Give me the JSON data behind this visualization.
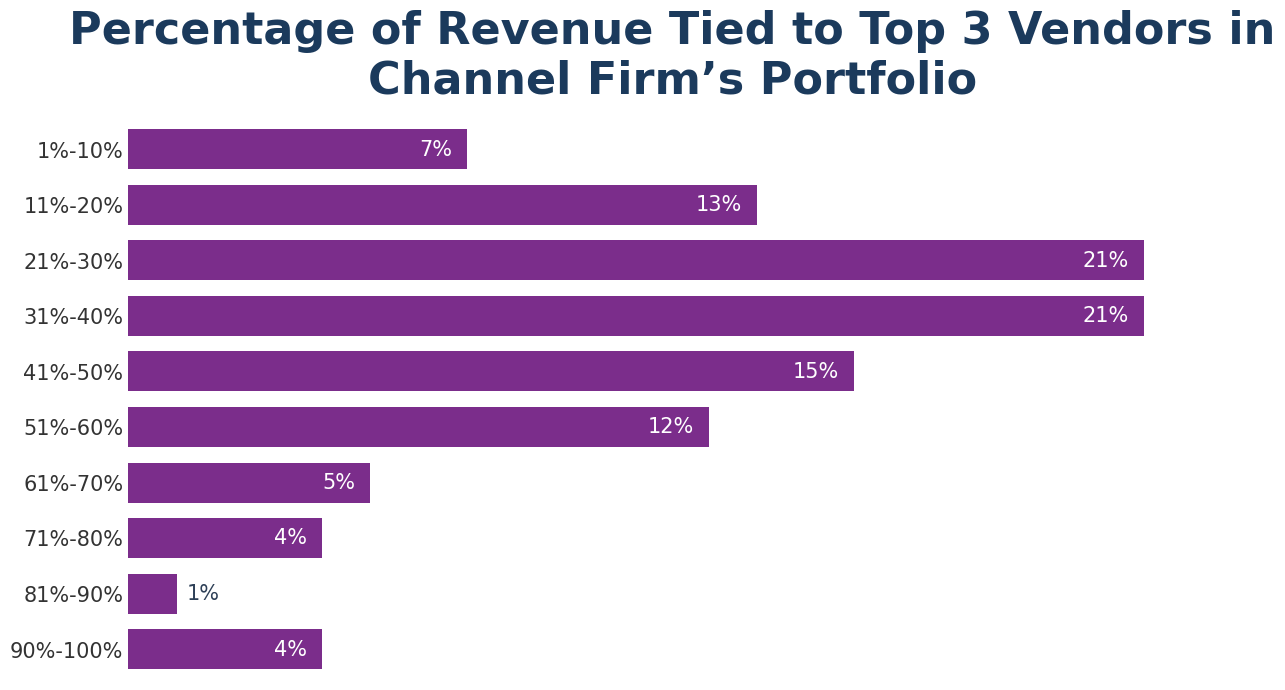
{
  "title": "Percentage of Revenue Tied to Top 3 Vendors in\nChannel Firm’s Portfolio",
  "categories": [
    "1%-10%",
    "11%-20%",
    "21%-30%",
    "31%-40%",
    "41%-50%",
    "51%-60%",
    "61%-70%",
    "71%-80%",
    "81%-90%",
    "90%-100%"
  ],
  "values": [
    7,
    13,
    21,
    21,
    15,
    12,
    5,
    4,
    1,
    4
  ],
  "bar_color": "#7B2D8B",
  "label_color_inside": "#ffffff",
  "label_color_outside": "#2E4057",
  "title_color": "#1B3A5C",
  "background_color": "#ffffff",
  "grid_color": "#dddddd",
  "title_fontsize": 32,
  "label_fontsize": 15,
  "tick_fontsize": 15,
  "bar_height": 0.72,
  "xlim": [
    0,
    22.5
  ]
}
